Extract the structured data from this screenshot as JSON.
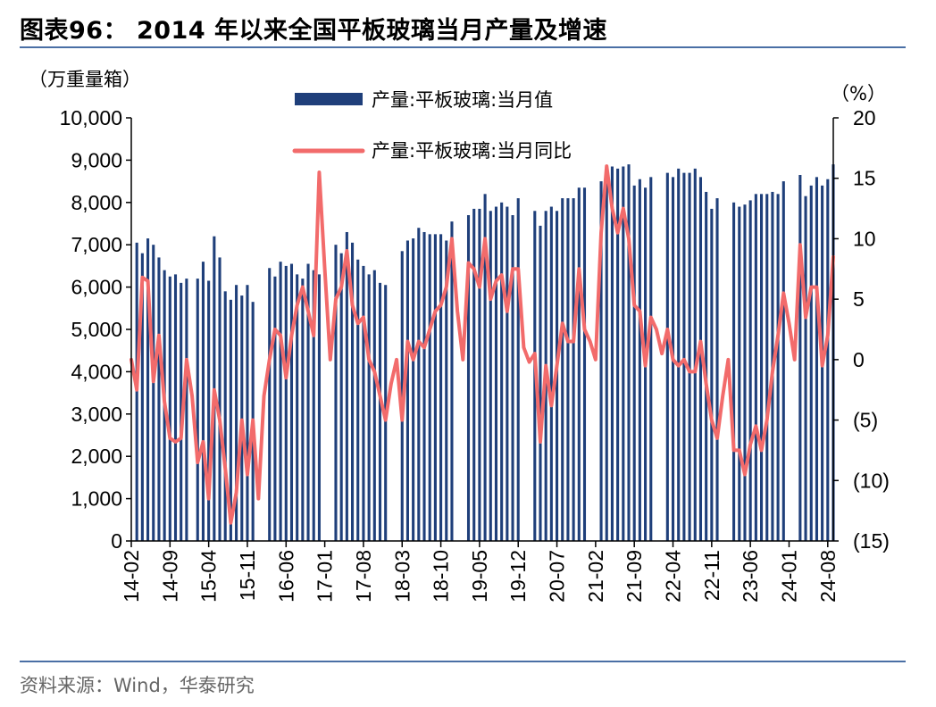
{
  "header": {
    "title": "图表96： 2014 年以来全国平板玻璃当月产量及增速"
  },
  "footer": {
    "source": "资料来源：Wind，华泰研究"
  },
  "colors": {
    "bar": "#1f3f7a",
    "line": "#f26b6b",
    "rule": "#4a6fa5",
    "axis": "#000000"
  },
  "chart_data": {
    "type": "bar+line",
    "title": "2014 年以来全国平板玻璃当月产量及增速",
    "left_unit": "（万重量箱）",
    "right_unit": "（%）",
    "ylim_left": [
      0,
      10000
    ],
    "ylim_right": [
      -15,
      20
    ],
    "left_ticks": [
      "0",
      "1,000",
      "2,000",
      "3,000",
      "4,000",
      "5,000",
      "6,000",
      "7,000",
      "8,000",
      "9,000",
      "10,000"
    ],
    "right_ticks": [
      "(15)",
      "(10)",
      "(5)",
      "0",
      "5",
      "10",
      "15",
      "20"
    ],
    "x_ticks": [
      "14-02",
      "14-09",
      "15-04",
      "15-11",
      "16-06",
      "17-01",
      "17-08",
      "18-03",
      "18-10",
      "19-05",
      "19-12",
      "20-07",
      "21-02",
      "21-09",
      "22-04",
      "22-11",
      "23-06",
      "24-01",
      "24-08"
    ],
    "start_month": "2014-02",
    "legend_placement": "top-center",
    "series": [
      {
        "name": "产量:平板玻璃:当月值",
        "kind": "bar",
        "axis": "left",
        "values": [
          null,
          7050,
          6800,
          7150,
          7000,
          6700,
          6400,
          6250,
          6300,
          6100,
          6200,
          null,
          6200,
          6600,
          6150,
          7200,
          6700,
          5900,
          5700,
          6050,
          5800,
          6050,
          5650,
          null,
          null,
          6450,
          6250,
          6600,
          6500,
          6550,
          6300,
          6200,
          6550,
          6400,
          6300,
          null,
          null,
          7000,
          6800,
          7300,
          7050,
          6650,
          6500,
          6300,
          6400,
          6100,
          6050,
          null,
          null,
          6850,
          7100,
          7150,
          7400,
          7300,
          7250,
          7250,
          7250,
          7100,
          7550,
          null,
          null,
          7700,
          7850,
          7850,
          8200,
          7800,
          7900,
          8000,
          7900,
          7700,
          8100,
          null,
          null,
          7800,
          7450,
          7800,
          7900,
          7800,
          8100,
          8100,
          8100,
          8350,
          8350,
          null,
          null,
          8500,
          8550,
          8850,
          8800,
          8850,
          8900,
          8400,
          8550,
          8350,
          8600,
          null,
          null,
          8700,
          8600,
          8800,
          8700,
          8700,
          8800,
          8600,
          8250,
          7850,
          8100,
          null,
          null,
          8000,
          7900,
          7950,
          8050,
          8200,
          8200,
          8200,
          8250,
          8200,
          8500,
          null,
          null,
          8650,
          8150,
          8400,
          8600,
          8400,
          8550,
          8900
        ]
      },
      {
        "name": "产量:平板玻璃:当月同比",
        "kind": "line",
        "axis": "right",
        "values": [
          0.0,
          -2.5,
          6.8,
          6.5,
          -1.8,
          2.0,
          -3.5,
          -6.5,
          -6.8,
          -6.5,
          0.0,
          -3.0,
          -8.5,
          -6.8,
          -11.5,
          -2.5,
          -5.0,
          -9.0,
          -13.5,
          -11.0,
          -5.0,
          -9.5,
          -5.0,
          -11.5,
          -3.0,
          0.0,
          2.5,
          2.0,
          -1.5,
          2.0,
          4.5,
          6.0,
          4.0,
          2.0,
          15.5,
          7.5,
          0.0,
          5.0,
          6.0,
          9.0,
          4.5,
          3.0,
          3.5,
          0.0,
          -1.0,
          -3.0,
          -5.0,
          -2.0,
          0.0,
          -5.0,
          1.5,
          0.0,
          1.5,
          1.0,
          2.5,
          4.0,
          4.5,
          6.0,
          10.0,
          4.0,
          0.0,
          8.0,
          7.5,
          6.0,
          10.0,
          5.0,
          6.5,
          7.0,
          4.0,
          7.5,
          7.5,
          1.0,
          -0.2,
          0.5,
          -6.8,
          -0.5,
          -3.8,
          -0.5,
          3.0,
          1.5,
          1.5,
          7.5,
          2.5,
          1.5,
          0.0,
          10.5,
          16.0,
          12.5,
          10.5,
          12.5,
          10.0,
          4.5,
          4.0,
          -0.5,
          3.5,
          2.5,
          0.5,
          2.5,
          0.0,
          -0.5,
          0.0,
          -1.0,
          -1.0,
          1.5,
          -2.0,
          -5.0,
          -6.5,
          -3.0,
          0.0,
          -7.5,
          -7.5,
          -9.5,
          -7.0,
          -5.5,
          -7.5,
          -5.0,
          -1.0,
          2.0,
          5.5,
          3.0,
          0.0,
          9.5,
          3.5,
          6.0,
          6.0,
          -0.5,
          2.0,
          8.5
        ]
      }
    ]
  }
}
